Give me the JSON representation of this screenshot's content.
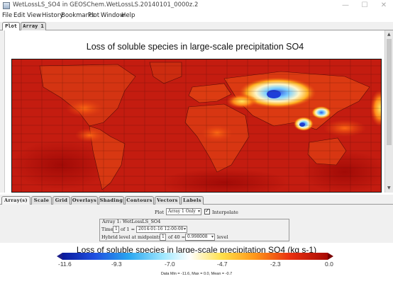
{
  "window": {
    "title": "WetLossLS_SO4 in GEOSChem.WetLossLS.20140101_0000z.2",
    "minimize": "—",
    "maximize": "☐",
    "close": "✕"
  },
  "menu": [
    "File",
    "Edit",
    "View",
    "History",
    "Bookmarks",
    "Plot",
    "Window",
    "Help"
  ],
  "top_tabs": [
    {
      "label": "Plot",
      "active": true
    },
    {
      "label": "Array 1",
      "active": false
    }
  ],
  "plot": {
    "title": "Loss of soluble species in large-scale precipitation SO4"
  },
  "control_tabs": [
    {
      "label": "Array(s)",
      "active": true
    },
    {
      "label": "Scale",
      "active": false
    },
    {
      "label": "Grid",
      "active": false
    },
    {
      "label": "Overlays",
      "active": false
    },
    {
      "label": "Shading",
      "active": false
    },
    {
      "label": "Contours",
      "active": false
    },
    {
      "label": "Vectors",
      "active": false
    },
    {
      "label": "Labels",
      "active": false
    }
  ],
  "controls": {
    "plot_label": "Plot",
    "plot_mode": "Array 1 Only",
    "interpolate_label": "Interpolate",
    "interpolate_checked": true,
    "array_label": "Array 1: WetLossLS_SO4",
    "time_label": "Time:",
    "time_index": "1",
    "time_of": "of 1 =",
    "time_value": "2014-01-16 12:00:00",
    "hybrid_label": "Hybrid level at midpoints:",
    "hybrid_index": "1",
    "hybrid_of": "of 40 =",
    "hybrid_value": "0.998008",
    "level_label": "level"
  },
  "colorbar": {
    "title": "Loss of soluble species in large-scale precipitation SO4 (kg s-1)",
    "tick_labels": [
      "-11.6",
      "-9.3",
      "-7.0",
      "-4.7",
      "-2.3",
      "0.0"
    ],
    "min": -11.6,
    "max": 0.0,
    "colors": [
      "#0a1a9c",
      "#1f4fe0",
      "#2aa6f0",
      "#9fe8ff",
      "#ffffff",
      "#ffe04a",
      "#ff9a1a",
      "#e83010",
      "#a80a04"
    ],
    "under_color": "#1c1f8a",
    "over_color": "#7a0000",
    "stats": "Data Min = -11.6, Max = 0.0, Mean = -0.7"
  },
  "map_colors": {
    "ocean_base": "#c41c10",
    "continent": "#d63412",
    "hotspot_light": "#fff4c0",
    "hotspot_blue": "#3a7cf0"
  }
}
